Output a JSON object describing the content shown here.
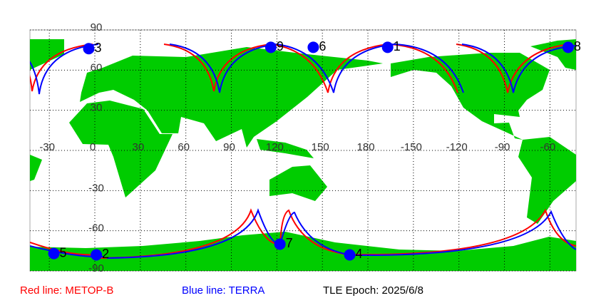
{
  "map": {
    "lat_ticks": [
      90,
      60,
      30,
      -30,
      -60,
      -90
    ],
    "lon_ticks": [
      -30,
      0,
      30,
      60,
      90,
      120,
      150,
      180,
      -150,
      -120,
      -90,
      -60
    ],
    "satellites": [
      {
        "label": "1",
        "lon": -167,
        "lat": 77
      },
      {
        "label": "2",
        "lon": 1,
        "lat": -78
      },
      {
        "label": "3",
        "lon": -4,
        "lat": 76
      },
      {
        "label": "4",
        "lon": 168,
        "lat": -78
      },
      {
        "label": "5",
        "lon": -27,
        "lat": -77
      },
      {
        "label": "6",
        "lon": 144,
        "lat": 77
      },
      {
        "label": "7",
        "lon": 122,
        "lat": -70
      },
      {
        "label": "8",
        "lon": -48,
        "lat": 77
      },
      {
        "label": "9",
        "lon": 116,
        "lat": 77
      }
    ],
    "legend": {
      "red": "Red line: METOP-B",
      "blue": "Blue line: TERRA",
      "epoch": "TLE Epoch: 2025/6/8"
    }
  }
}
